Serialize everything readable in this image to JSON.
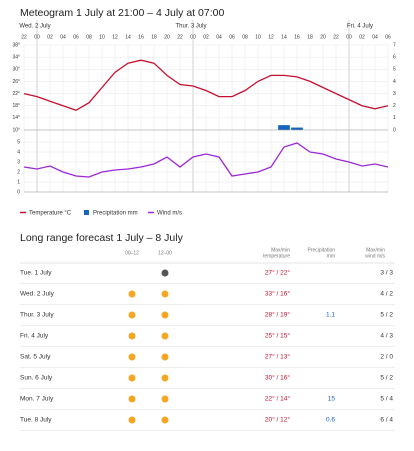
{
  "title": "Meteogram 1 July at 21:00 – 4 July at 07:00",
  "chart_data": {
    "type": "line",
    "x": [
      "22",
      "00",
      "02",
      "04",
      "06",
      "08",
      "10",
      "12",
      "14",
      "16",
      "18",
      "20",
      "22",
      "00",
      "02",
      "04",
      "06",
      "08",
      "10",
      "12",
      "14",
      "16",
      "18",
      "20",
      "22",
      "00",
      "02",
      "04",
      "06"
    ],
    "days": [
      null,
      "Wed. 2 July",
      null,
      null,
      null,
      null,
      null,
      null,
      null,
      null,
      null,
      null,
      null,
      "Thur. 3 July",
      null,
      null,
      null,
      null,
      null,
      null,
      null,
      null,
      null,
      null,
      null,
      "Fri. 4 July",
      null,
      null,
      null
    ],
    "ylim": [
      10,
      38
    ],
    "yticks": [
      {
        "value": 10,
        "label": "10°"
      },
      {
        "value": 14,
        "label": "14°"
      },
      {
        "value": 18,
        "label": "18°"
      },
      {
        "value": 22,
        "label": "22°"
      },
      {
        "value": 26,
        "label": "26°"
      },
      {
        "value": 30,
        "label": "30°"
      },
      {
        "value": 34,
        "label": "34°"
      },
      {
        "value": 38,
        "label": "38°"
      }
    ],
    "y2lim": [
      0,
      7
    ],
    "y2ticks": [
      0,
      1,
      2,
      3,
      4,
      5,
      6,
      7
    ],
    "y3lim": [
      0,
      5
    ],
    "y3ticks": [
      0,
      1,
      2,
      3,
      4,
      5
    ],
    "grid": true,
    "series": [
      {
        "name": "Temperature °C",
        "color": "#c8102e",
        "values": [
          22,
          21,
          19.5,
          18,
          16.5,
          19,
          24,
          29,
          32,
          33,
          32,
          28,
          25,
          24.5,
          23,
          21,
          21,
          23,
          26,
          28,
          28,
          27.5,
          26,
          24,
          22,
          20,
          18,
          17,
          18
        ]
      },
      {
        "name": "Precipitation mm",
        "color": "#1565c0",
        "type": "bar",
        "axis": "y2",
        "values": [
          0,
          0,
          0,
          0,
          0,
          0,
          0,
          0,
          0,
          0,
          0,
          0,
          0,
          0,
          0,
          0,
          0,
          0,
          0,
          0,
          0.4,
          0.2,
          0,
          0,
          0,
          0,
          0,
          0,
          0
        ]
      },
      {
        "name": "Wind m/s",
        "color": "#9c27d8",
        "axis": "y3",
        "values": [
          2.5,
          2.3,
          2.6,
          2,
          1.6,
          1.5,
          2,
          2.2,
          2.3,
          2.5,
          2.8,
          3.5,
          2.5,
          3.5,
          3.8,
          3.5,
          1.6,
          1.8,
          2,
          2.5,
          4.5,
          4.9,
          4,
          3.8,
          3.3,
          3,
          2.6,
          2.8,
          2.5
        ]
      }
    ]
  },
  "forecast": {
    "title": "Long range forecast 1 July – 8 July",
    "headers": [
      [
        "00–12"
      ],
      [
        "12–00"
      ],
      [
        "Max/min",
        "temperature"
      ],
      [
        "Precipitation",
        "mm"
      ],
      [
        "Max/min",
        "wind m/s"
      ]
    ],
    "rows": [
      {
        "day": "Tue. 1 July",
        "temp": "27° / 22°",
        "precip": null,
        "wind": "3 / 3"
      },
      {
        "day": "Wed. 2 July",
        "temp": "33° / 16°",
        "precip": null,
        "wind": "4 / 2"
      },
      {
        "day": "Thur. 3 July",
        "temp": "28° / 19°",
        "precip": "1.1",
        "wind": "5 / 2"
      },
      {
        "day": "Fri. 4 July",
        "temp": "25° / 15°",
        "precip": null,
        "wind": "4 / 3"
      },
      {
        "day": "Sat. 5 July",
        "temp": "27° / 13°",
        "precip": null,
        "wind": "2 / 0"
      },
      {
        "day": "Sun. 6 July",
        "temp": "30° / 16°",
        "precip": null,
        "wind": "5 / 2"
      },
      {
        "day": "Mon. 7 July",
        "temp": "22° / 14°",
        "precip": "15",
        "wind": "5 / 4"
      },
      {
        "day": "Tue. 8 July",
        "temp": "20° / 12°",
        "precip": "0.6",
        "wind": "6 / 4"
      }
    ]
  }
}
